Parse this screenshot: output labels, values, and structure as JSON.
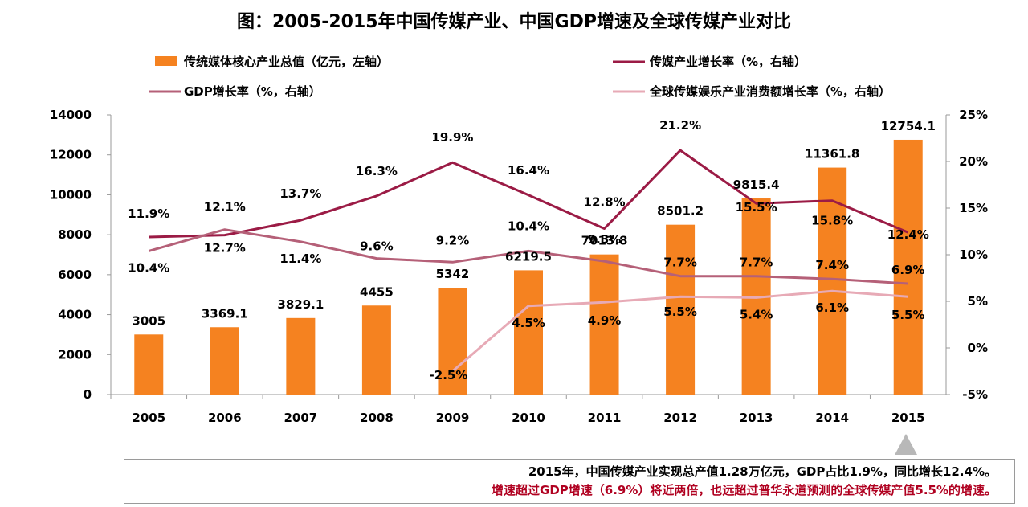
{
  "chart_data": {
    "type": "bar+line",
    "title": "图：2005-2015年中国传媒产业、中国GDP增速及全球传媒产业对比",
    "categories": [
      "2005",
      "2006",
      "2007",
      "2008",
      "2009",
      "2010",
      "2011",
      "2012",
      "2013",
      "2014",
      "2015"
    ],
    "bar_series": {
      "name": "传统媒体核心产业总值（亿元，左轴）",
      "color": "#f58220",
      "values": [
        3005,
        3369.1,
        3829.1,
        4455,
        5342,
        6219.5,
        7013.8,
        8501.2,
        9815.4,
        11361.8,
        12754.1
      ],
      "labels": [
        "3005",
        "3369.1",
        "3829.1",
        "4455",
        "5342",
        "6219.5",
        "7013.8",
        "8501.2",
        "9815.4",
        "11361.8",
        "12754.1"
      ]
    },
    "line_series": [
      {
        "name": "传媒产业增长率（%，右轴）",
        "color": "#9b1b45",
        "values": [
          11.9,
          12.1,
          13.7,
          16.3,
          19.9,
          16.4,
          12.8,
          21.2,
          15.5,
          15.8,
          12.4
        ],
        "labels": [
          "11.9%",
          "12.1%",
          "13.7%",
          "16.3%",
          "19.9%",
          "16.4%",
          "12.8%",
          "21.2%",
          "15.5%",
          "15.8%",
          "12.4%"
        ]
      },
      {
        "name": "GDP增长率（%，右轴）",
        "color": "#b56078",
        "values": [
          10.4,
          12.7,
          11.4,
          9.6,
          9.2,
          10.4,
          9.3,
          7.7,
          7.7,
          7.4,
          6.9
        ],
        "labels": [
          "10.4%",
          "12.7%",
          "11.4%",
          "9.6%",
          "9.2%",
          "10.4%",
          "9.3%",
          "7.7%",
          "7.7%",
          "7.4%",
          "6.9%"
        ]
      },
      {
        "name": "全球传媒娱乐产业消费额增长率（%，右轴）",
        "color": "#e7aab6",
        "values": [
          null,
          null,
          null,
          null,
          -2.5,
          4.5,
          4.9,
          5.5,
          5.4,
          6.1,
          5.5
        ],
        "labels": [
          "",
          "",
          "",
          "",
          "-2.5%",
          "4.5%",
          "4.9%",
          "5.5%",
          "5.4%",
          "6.1%",
          "5.5%"
        ]
      }
    ],
    "y_left": {
      "min": 0,
      "max": 14000,
      "ticks": [
        "0",
        "2000",
        "4000",
        "6000",
        "8000",
        "10000",
        "12000",
        "14000"
      ]
    },
    "y_right": {
      "min": -5,
      "max": 25,
      "ticks": [
        "-5%",
        "0%",
        "5%",
        "10%",
        "15%",
        "20%",
        "25%"
      ]
    },
    "grid": false,
    "legend_position": "top"
  },
  "note": {
    "line1": "2015年，中国传媒产业实现总产值1.28万亿元，GDP占比1.9%，同比增长12.4%。",
    "line2": "增速超过GDP增速（6.9%）将近两倍，也远超过普华永道预测的全球传媒产值5.5%的增速。"
  }
}
